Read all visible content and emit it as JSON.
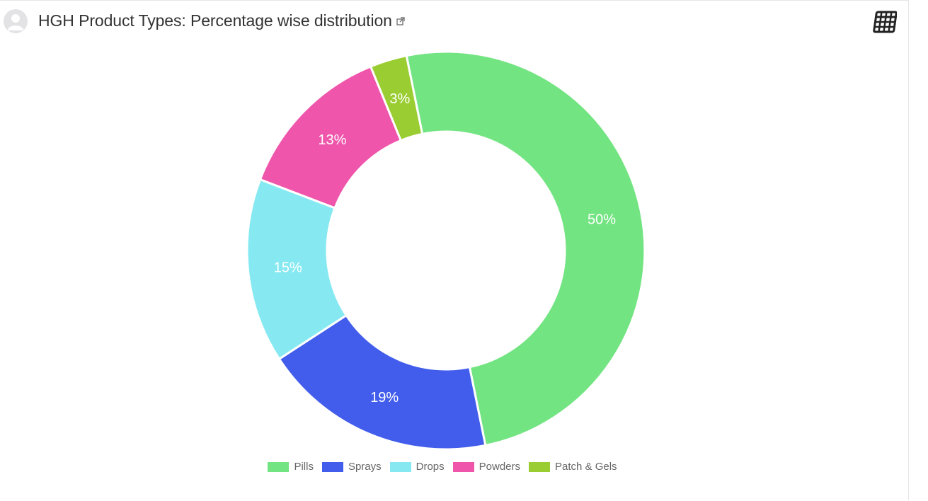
{
  "header": {
    "title": "HGH Product Types: Percentage wise distribution",
    "avatar_icon": "user-avatar-icon",
    "link_icon": "external-link-icon",
    "table_icon": "table-grid-icon"
  },
  "chart_data": {
    "type": "pie",
    "style": "doughnut",
    "title": "HGH Product Types: Percentage wise distribution",
    "legend_position": "bottom",
    "slices": [
      {
        "label": "Pills",
        "value": 50,
        "display": "50%",
        "color": "#73e482"
      },
      {
        "label": "Sprays",
        "value": 19,
        "display": "19%",
        "color": "#425deb"
      },
      {
        "label": "Drops",
        "value": 15,
        "display": "15%",
        "color": "#86e9f1"
      },
      {
        "label": "Powders",
        "value": 13,
        "display": "13%",
        "color": "#ef55ab"
      },
      {
        "label": "Patch & Gels",
        "value": 3,
        "display": "3%",
        "color": "#9acd32"
      }
    ]
  }
}
